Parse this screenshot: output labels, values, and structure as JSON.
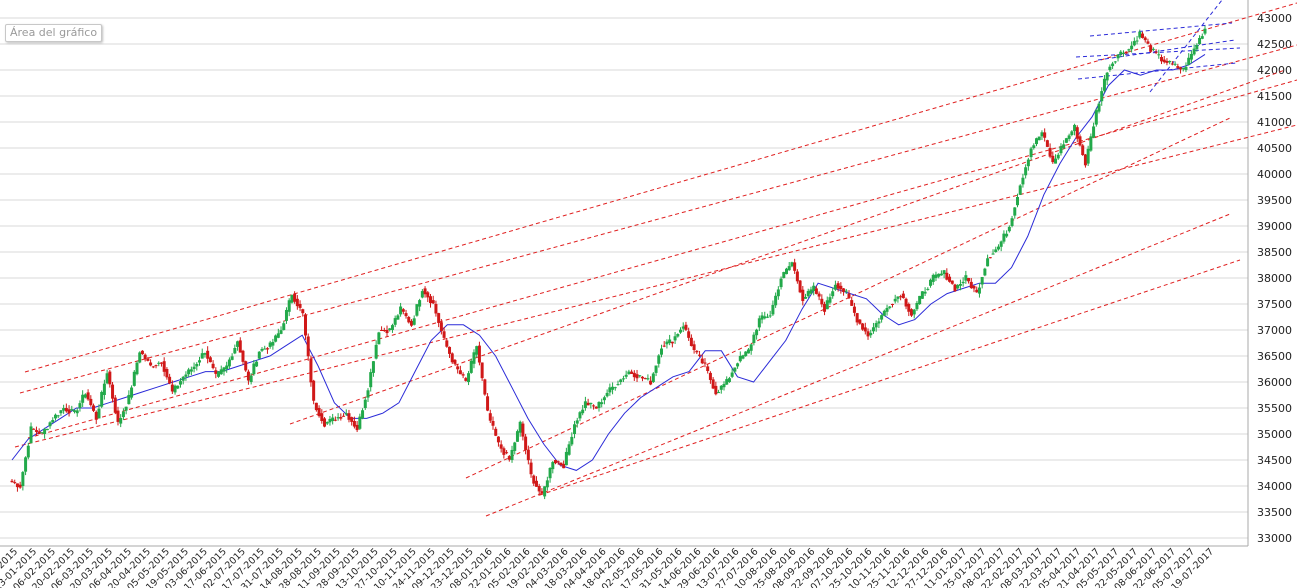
{
  "chart_area_label": "Área del gráfico",
  "chart_data": {
    "type": "candlestick",
    "title": "",
    "xlabel": "",
    "ylabel": "",
    "ylim": [
      33000,
      43000
    ],
    "grid": {
      "horizontal": true,
      "vertical": false
    },
    "y_ticks": [
      33000,
      33500,
      34000,
      34500,
      35000,
      35500,
      36000,
      36500,
      37000,
      37500,
      38000,
      38500,
      39000,
      39500,
      40000,
      40500,
      41000,
      41500,
      42000,
      42500,
      43000
    ],
    "x_ticks": [
      "09-01-2015",
      "23-01-2015",
      "06-02-2015",
      "20-02-2015",
      "06-03-2015",
      "20-03-2015",
      "06-04-2015",
      "20-04-2015",
      "05-05-2015",
      "19-05-2015",
      "03-06-2015",
      "17-06-2015",
      "02-07-2015",
      "17-07-2015",
      "31-07-2015",
      "14-08-2015",
      "28-08-2015",
      "11-09-2015",
      "28-09-2015",
      "13-10-2015",
      "27-10-2015",
      "10-11-2015",
      "24-11-2015",
      "09-12-2015",
      "23-12-2015",
      "08-01-2016",
      "22-01-2016",
      "05-02-2016",
      "19-02-2016",
      "04-03-2016",
      "18-03-2016",
      "04-04-2016",
      "18-04-2016",
      "02-05-2016",
      "17-05-2016",
      "31-05-2016",
      "14-06-2016",
      "29-06-2016",
      "13-07-2016",
      "27-07-2016",
      "10-08-2016",
      "25-08-2016",
      "08-09-2016",
      "22-09-2016",
      "07-10-2016",
      "25-10-2016",
      "10-11-2016",
      "25-11-2016",
      "12-12-2016",
      "27-12-2016",
      "11-01-2017",
      "25-01-2017",
      "08-02-2017",
      "22-02-2017",
      "08-03-2017",
      "22-03-2017",
      "05-04-2017",
      "21-04-2017",
      "05-05-2017",
      "22-05-2017",
      "08-06-2017",
      "22-06-2017",
      "05-07-2017",
      "19-07-2017"
    ],
    "closes": [
      34100,
      34000,
      35100,
      35000,
      35300,
      35500,
      35400,
      35800,
      35300,
      36200,
      35200,
      35700,
      36600,
      36300,
      36400,
      35800,
      36100,
      36300,
      36600,
      36100,
      36300,
      36800,
      36000,
      36600,
      36700,
      37000,
      37700,
      37300,
      35600,
      35200,
      35300,
      35400,
      35100,
      35900,
      37000,
      37000,
      37400,
      37100,
      37800,
      37500,
      36800,
      36300,
      36000,
      36700,
      35400,
      34800,
      34500,
      35200,
      34200,
      33800,
      34500,
      34400,
      35200,
      35600,
      35500,
      35800,
      36000,
      36200,
      36100,
      36000,
      36700,
      36800,
      37100,
      36600,
      36300,
      35800,
      36000,
      36400,
      36600,
      37200,
      37300,
      38000,
      38300,
      37600,
      37800,
      37400,
      37900,
      37700,
      37200,
      36900,
      37200,
      37500,
      37700,
      37300,
      37700,
      38000,
      38100,
      37800,
      38000,
      37700,
      38400,
      38600,
      39000,
      39800,
      40500,
      40800,
      40200,
      40600,
      40900,
      40200,
      41200,
      42000,
      42300,
      42400,
      42700,
      42400,
      42200,
      42100,
      42000,
      42400,
      42800
    ],
    "series": [
      {
        "name": "",
        "type": "candles",
        "color_up": "#22a94a",
        "color_down": "#d01818"
      },
      {
        "name": "",
        "type": "moving-average",
        "color": "#2b2bd8",
        "values": [
          34500,
          34900,
          35100,
          35300,
          35500,
          35500,
          35600,
          35700,
          35800,
          35900,
          36000,
          36100,
          36200,
          36200,
          36300,
          36400,
          36500,
          36700,
          36900,
          36300,
          35600,
          35300,
          35300,
          35400,
          35600,
          36200,
          36800,
          37100,
          37100,
          36900,
          36500,
          35900,
          35300,
          34800,
          34400,
          34300,
          34500,
          35000,
          35400,
          35700,
          35900,
          36100,
          36200,
          36600,
          36600,
          36100,
          36000,
          36400,
          36800,
          37400,
          37900,
          37800,
          37700,
          37600,
          37300,
          37100,
          37200,
          37500,
          37700,
          37800,
          37900,
          37900,
          38200,
          38800,
          39600,
          40200,
          40700,
          41100,
          41700,
          42000,
          41900,
          42000,
          42000,
          42100,
          42300
        ]
      },
      {
        "name": "",
        "type": "channel-lines",
        "color": "#e02020",
        "style": "dashed"
      },
      {
        "name": "",
        "type": "trend-lines",
        "color": "#2b2bd8",
        "style": "dashed"
      }
    ],
    "legend": "none"
  }
}
